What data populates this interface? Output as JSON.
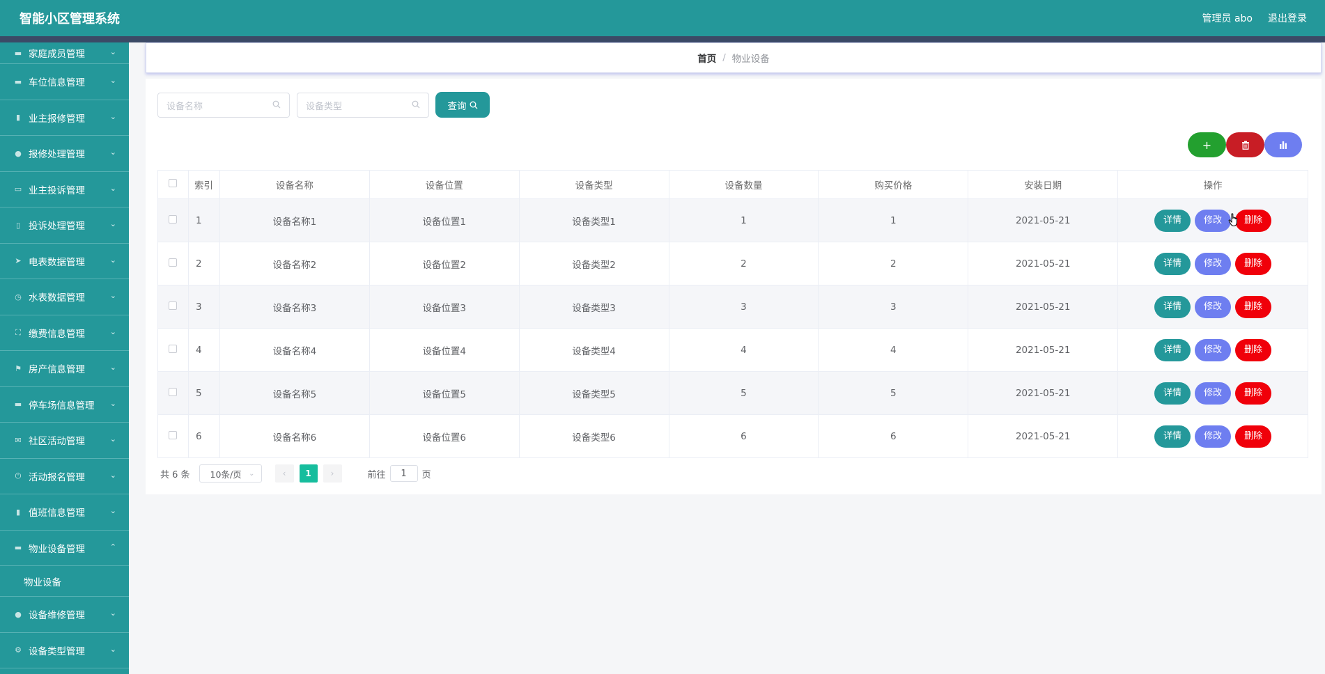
{
  "header": {
    "title": "智能小区管理系统",
    "user": "管理员 abo",
    "logout": "退出登录"
  },
  "sidebar": {
    "items": [
      {
        "label": "家庭成员管理",
        "icon": "user-icon"
      },
      {
        "label": "车位信息管理",
        "icon": "monitor-icon"
      },
      {
        "label": "业主报修管理",
        "icon": "bar-chart-icon"
      },
      {
        "label": "报修处理管理",
        "icon": "user-icon"
      },
      {
        "label": "业主投诉管理",
        "icon": "chat-icon"
      },
      {
        "label": "投诉处理管理",
        "icon": "phone-icon"
      },
      {
        "label": "电表数据管理",
        "icon": "send-icon"
      },
      {
        "label": "水表数据管理",
        "icon": "clock-icon"
      },
      {
        "label": "缴费信息管理",
        "icon": "fullscreen-icon"
      },
      {
        "label": "房产信息管理",
        "icon": "flag-icon"
      },
      {
        "label": "停车场信息管理",
        "icon": "ticket-icon"
      },
      {
        "label": "社区活动管理",
        "icon": "mail-icon"
      },
      {
        "label": "活动报名管理",
        "icon": "power-icon"
      },
      {
        "label": "值班信息管理",
        "icon": "clipboard-icon"
      },
      {
        "label": "物业设备管理",
        "icon": "monitor-icon"
      }
    ],
    "submenu": [
      "物业设备"
    ],
    "items_after": [
      {
        "label": "设备维修管理",
        "icon": "user-icon"
      },
      {
        "label": "设备类型管理",
        "icon": "gear-icon"
      }
    ]
  },
  "breadcrumb": {
    "home": "首页",
    "separator": "/",
    "current": "物业设备"
  },
  "search": {
    "name_placeholder": "设备名称",
    "type_placeholder": "设备类型",
    "query_label": "查询"
  },
  "table": {
    "columns": [
      "索引",
      "设备名称",
      "设备位置",
      "设备类型",
      "设备数量",
      "购买价格",
      "安装日期",
      "操作"
    ],
    "rows": [
      {
        "index": "1",
        "name": "设备名称1",
        "location": "设备位置1",
        "type": "设备类型1",
        "quantity": "1",
        "price": "1",
        "date": "2021-05-21"
      },
      {
        "index": "2",
        "name": "设备名称2",
        "location": "设备位置2",
        "type": "设备类型2",
        "quantity": "2",
        "price": "2",
        "date": "2021-05-21"
      },
      {
        "index": "3",
        "name": "设备名称3",
        "location": "设备位置3",
        "type": "设备类型3",
        "quantity": "3",
        "price": "3",
        "date": "2021-05-21"
      },
      {
        "index": "4",
        "name": "设备名称4",
        "location": "设备位置4",
        "type": "设备类型4",
        "quantity": "4",
        "price": "4",
        "date": "2021-05-21"
      },
      {
        "index": "5",
        "name": "设备名称5",
        "location": "设备位置5",
        "type": "设备类型5",
        "quantity": "5",
        "price": "5",
        "date": "2021-05-21"
      },
      {
        "index": "6",
        "name": "设备名称6",
        "location": "设备位置6",
        "type": "设备类型6",
        "quantity": "6",
        "price": "6",
        "date": "2021-05-21"
      }
    ],
    "actions": {
      "detail": "详情",
      "edit": "修改",
      "delete": "删除"
    }
  },
  "pagination": {
    "total": "共 6 条",
    "page_size": "10条/页",
    "current_page": "1",
    "goto_prefix": "前往",
    "goto_value": "1",
    "goto_suffix": "页"
  },
  "colors": {
    "primary": "#24989a",
    "edit": "#6e7ef0",
    "danger": "#f0000a",
    "success": "#23a02f",
    "active_page": "#16bd9d"
  }
}
